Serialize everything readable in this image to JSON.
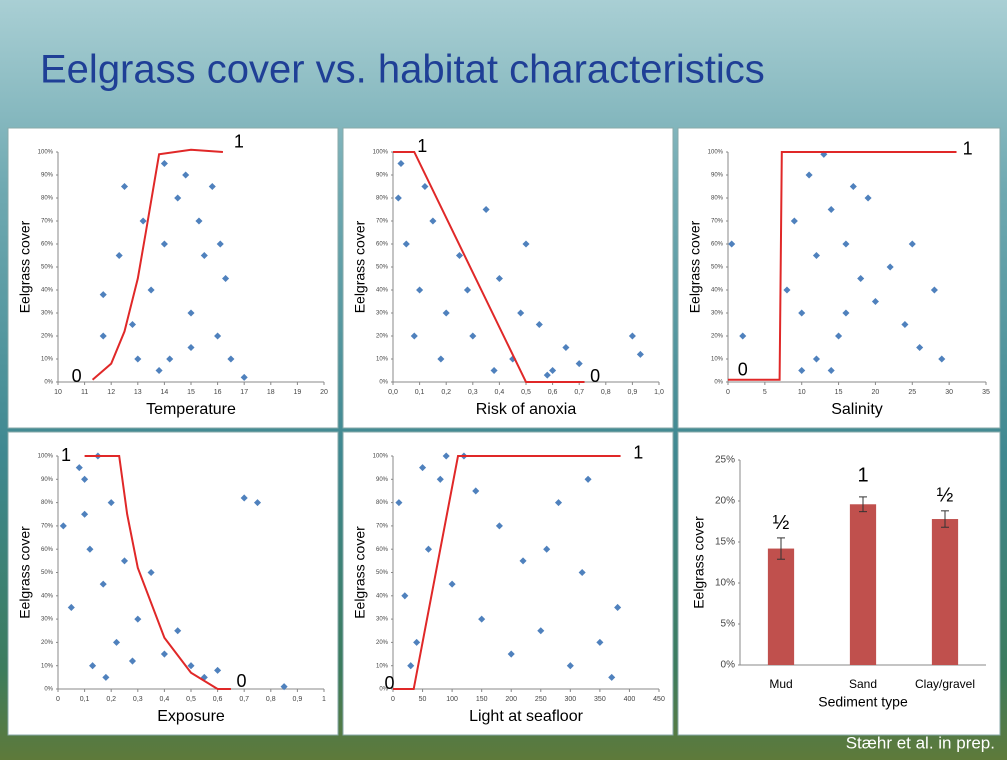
{
  "title": "Eelgrass cover vs. habitat characteristics",
  "footer": "Stæhr et al. in prep.",
  "chart_data": [
    {
      "type": "scatter",
      "xlabel": "Temperature",
      "ylabel": "Eelgrass cover",
      "xlim": [
        10,
        20
      ],
      "ylim": [
        0,
        100
      ],
      "xticks": [
        10,
        11,
        12,
        13,
        14,
        15,
        16,
        17,
        18,
        19,
        20
      ],
      "yticks": [
        {
          "value": 0,
          "label": "0%"
        },
        {
          "value": 10,
          "label": "10%"
        },
        {
          "value": 20,
          "label": "20%"
        },
        {
          "value": 30,
          "label": "30%"
        },
        {
          "value": 40,
          "label": "40%"
        },
        {
          "value": 50,
          "label": "50%"
        },
        {
          "value": 60,
          "label": "60%"
        },
        {
          "value": 70,
          "label": "70%"
        },
        {
          "value": 80,
          "label": "80%"
        },
        {
          "value": 90,
          "label": "90%"
        },
        {
          "value": 100,
          "label": "100%"
        }
      ],
      "points": {
        "color": "#4f81bd",
        "x": [
          13.5,
          14,
          14.5,
          15,
          15.5,
          16,
          14.2,
          13.8,
          14.8,
          15.3,
          16.3,
          12.8,
          12.3,
          11.7,
          11.7,
          12.5,
          13.2,
          15.8,
          16.5,
          17,
          14,
          15,
          13,
          16.1
        ],
        "values": [
          40,
          60,
          80,
          30,
          55,
          20,
          10,
          5,
          90,
          70,
          45,
          25,
          55,
          38,
          20,
          85,
          70,
          85,
          10,
          2,
          95,
          15,
          10,
          60
        ]
      },
      "fit": {
        "color": "#e02828",
        "x": [
          11.3,
          12,
          12.5,
          13,
          13.3,
          13.8,
          15,
          16.2
        ],
        "values": [
          1,
          8,
          22,
          45,
          65,
          99,
          101,
          100
        ]
      },
      "annotations": [
        {
          "text": "0",
          "x": 10.7,
          "y": 2
        },
        {
          "text": "1",
          "x": 16.8,
          "y": 104
        }
      ]
    },
    {
      "type": "scatter",
      "xlabel": "Risk of anoxia",
      "ylabel": "Eelgrass cover",
      "xlim": [
        0,
        1
      ],
      "ylim": [
        0,
        100
      ],
      "xticks": [
        {
          "value": 0,
          "label": "0,0"
        },
        {
          "value": 0.1,
          "label": "0,1"
        },
        {
          "value": 0.2,
          "label": "0,2"
        },
        {
          "value": 0.3,
          "label": "0,3"
        },
        {
          "value": 0.4,
          "label": "0,4"
        },
        {
          "value": 0.5,
          "label": "0,5"
        },
        {
          "value": 0.6,
          "label": "0,6"
        },
        {
          "value": 0.7,
          "label": "0,7"
        },
        {
          "value": 0.8,
          "label": "0,8"
        },
        {
          "value": 0.9,
          "label": "0,9"
        },
        {
          "value": 1,
          "label": "1,0"
        }
      ],
      "yticks": [
        {
          "value": 0,
          "label": "0%"
        },
        {
          "value": 10,
          "label": "10%"
        },
        {
          "value": 20,
          "label": "20%"
        },
        {
          "value": 30,
          "label": "30%"
        },
        {
          "value": 40,
          "label": "40%"
        },
        {
          "value": 50,
          "label": "50%"
        },
        {
          "value": 60,
          "label": "60%"
        },
        {
          "value": 70,
          "label": "70%"
        },
        {
          "value": 80,
          "label": "80%"
        },
        {
          "value": 90,
          "label": "90%"
        },
        {
          "value": 100,
          "label": "100%"
        }
      ],
      "points": {
        "color": "#4f81bd",
        "x": [
          0.02,
          0.05,
          0.1,
          0.15,
          0.2,
          0.25,
          0.3,
          0.35,
          0.4,
          0.45,
          0.5,
          0.55,
          0.6,
          0.65,
          0.7,
          0.03,
          0.08,
          0.12,
          0.18,
          0.28,
          0.38,
          0.48,
          0.58,
          0.9,
          0.93
        ],
        "values": [
          80,
          60,
          40,
          70,
          30,
          55,
          20,
          75,
          45,
          10,
          60,
          25,
          5,
          15,
          8,
          95,
          20,
          85,
          10,
          40,
          5,
          30,
          3,
          20,
          12
        ]
      },
      "fit": {
        "color": "#e02828",
        "x": [
          0,
          0.08,
          0.5,
          0.72
        ],
        "values": [
          100,
          100,
          0,
          0
        ]
      },
      "annotations": [
        {
          "text": "1",
          "x": 0.11,
          "y": 102
        },
        {
          "text": "0",
          "x": 0.76,
          "y": 2
        }
      ]
    },
    {
      "type": "scatter",
      "xlabel": "Salinity",
      "ylabel": "Eelgrass cover",
      "xlim": [
        0,
        35
      ],
      "ylim": [
        0,
        100
      ],
      "xticks": [
        0,
        5,
        10,
        15,
        20,
        25,
        30,
        35
      ],
      "yticks": [
        {
          "value": 0,
          "label": "0%"
        },
        {
          "value": 10,
          "label": "10%"
        },
        {
          "value": 20,
          "label": "20%"
        },
        {
          "value": 30,
          "label": "30%"
        },
        {
          "value": 40,
          "label": "40%"
        },
        {
          "value": 50,
          "label": "50%"
        },
        {
          "value": 60,
          "label": "60%"
        },
        {
          "value": 70,
          "label": "70%"
        },
        {
          "value": 80,
          "label": "80%"
        },
        {
          "value": 90,
          "label": "90%"
        },
        {
          "value": 100,
          "label": "100%"
        }
      ],
      "points": {
        "color": "#4f81bd",
        "x": [
          0.5,
          2,
          8,
          9,
          10,
          11,
          12,
          13,
          14,
          15,
          16,
          17,
          18,
          20,
          22,
          24,
          26,
          28,
          29,
          12,
          14,
          16,
          19,
          10,
          25
        ],
        "values": [
          60,
          20,
          40,
          70,
          30,
          90,
          55,
          99,
          75,
          20,
          60,
          85,
          45,
          35,
          50,
          25,
          15,
          40,
          10,
          10,
          5,
          30,
          80,
          5,
          60
        ]
      },
      "fit": {
        "color": "#e02828",
        "x": [
          0,
          7,
          7.3,
          31
        ],
        "values": [
          1,
          1,
          100,
          100
        ]
      },
      "annotations": [
        {
          "text": "0",
          "x": 2,
          "y": 5
        },
        {
          "text": "1",
          "x": 32.5,
          "y": 101
        }
      ]
    },
    {
      "type": "scatter",
      "xlabel": "Exposure",
      "ylabel": "Eelgrass cover",
      "xlim": [
        0,
        1
      ],
      "ylim": [
        0,
        100
      ],
      "xticks": [
        {
          "value": 0,
          "label": "0"
        },
        {
          "value": 0.1,
          "label": "0,1"
        },
        {
          "value": 0.2,
          "label": "0,2"
        },
        {
          "value": 0.3,
          "label": "0,3"
        },
        {
          "value": 0.4,
          "label": "0,4"
        },
        {
          "value": 0.5,
          "label": "0,5"
        },
        {
          "value": 0.6,
          "label": "0,6"
        },
        {
          "value": 0.7,
          "label": "0,7"
        },
        {
          "value": 0.8,
          "label": "0,8"
        },
        {
          "value": 0.9,
          "label": "0,9"
        },
        {
          "value": 1,
          "label": "1"
        }
      ],
      "yticks": [
        {
          "value": 0,
          "label": "0%"
        },
        {
          "value": 10,
          "label": "10%"
        },
        {
          "value": 20,
          "label": "20%"
        },
        {
          "value": 30,
          "label": "30%"
        },
        {
          "value": 40,
          "label": "40%"
        },
        {
          "value": 50,
          "label": "50%"
        },
        {
          "value": 60,
          "label": "60%"
        },
        {
          "value": 70,
          "label": "70%"
        },
        {
          "value": 80,
          "label": "80%"
        },
        {
          "value": 90,
          "label": "90%"
        },
        {
          "value": 100,
          "label": "100%"
        }
      ],
      "points": {
        "color": "#4f81bd",
        "x": [
          0.02,
          0.05,
          0.1,
          0.12,
          0.15,
          0.17,
          0.2,
          0.22,
          0.25,
          0.3,
          0.35,
          0.4,
          0.45,
          0.5,
          0.55,
          0.6,
          0.7,
          0.75,
          0.85,
          0.13,
          0.18,
          0.28,
          0.08,
          0.1
        ],
        "values": [
          70,
          35,
          90,
          60,
          100,
          45,
          80,
          20,
          55,
          30,
          50,
          15,
          25,
          10,
          5,
          8,
          82,
          80,
          1,
          10,
          5,
          12,
          95,
          75
        ]
      },
      "fit": {
        "color": "#e02828",
        "x": [
          0.1,
          0.23,
          0.26,
          0.3,
          0.4,
          0.5,
          0.6,
          0.65
        ],
        "values": [
          100,
          100,
          75,
          52,
          22,
          7,
          0,
          0
        ]
      },
      "annotations": [
        {
          "text": "1",
          "x": 0.03,
          "y": 100
        },
        {
          "text": "0",
          "x": 0.69,
          "y": 3
        }
      ]
    },
    {
      "type": "scatter",
      "xlabel": "Light at seafloor",
      "ylabel": "Eelgrass cover",
      "xlim": [
        0,
        450
      ],
      "ylim": [
        0,
        100
      ],
      "xticks": [
        0,
        50,
        100,
        150,
        200,
        250,
        300,
        350,
        400,
        450
      ],
      "yticks": [
        {
          "value": 0,
          "label": "0%"
        },
        {
          "value": 10,
          "label": "10%"
        },
        {
          "value": 20,
          "label": "20%"
        },
        {
          "value": 30,
          "label": "30%"
        },
        {
          "value": 40,
          "label": "40%"
        },
        {
          "value": 50,
          "label": "50%"
        },
        {
          "value": 60,
          "label": "60%"
        },
        {
          "value": 70,
          "label": "70%"
        },
        {
          "value": 80,
          "label": "80%"
        },
        {
          "value": 90,
          "label": "90%"
        },
        {
          "value": 100,
          "label": "100%"
        }
      ],
      "points": {
        "color": "#4f81bd",
        "x": [
          10,
          20,
          40,
          60,
          80,
          100,
          120,
          150,
          180,
          200,
          220,
          250,
          280,
          300,
          320,
          350,
          380,
          50,
          90,
          140,
          260,
          330,
          370,
          30
        ],
        "values": [
          80,
          40,
          20,
          60,
          90,
          45,
          100,
          30,
          70,
          15,
          55,
          25,
          80,
          10,
          50,
          20,
          35,
          95,
          100,
          85,
          60,
          90,
          5,
          10
        ]
      },
      "fit": {
        "color": "#e02828",
        "x": [
          0,
          35,
          110,
          385
        ],
        "values": [
          0,
          0,
          100,
          100
        ]
      },
      "annotations": [
        {
          "text": "0",
          "x": -6,
          "y": 2
        },
        {
          "text": "1",
          "x": 415,
          "y": 101
        }
      ]
    },
    {
      "type": "bar",
      "xlabel": "Sediment type",
      "ylabel": "Eelgrass cover",
      "categories": [
        "Mud",
        "Sand",
        "Clay/gravel"
      ],
      "values": [
        14.2,
        19.6,
        17.8
      ],
      "errors": [
        1.3,
        0.9,
        1.0
      ],
      "color": "#c0504d",
      "ylim": [
        0,
        25
      ],
      "yticks": [
        {
          "value": 0,
          "label": "0%"
        },
        {
          "value": 5,
          "label": "5%"
        },
        {
          "value": 10,
          "label": "10%"
        },
        {
          "value": 15,
          "label": "15%"
        },
        {
          "value": 20,
          "label": "20%"
        },
        {
          "value": 25,
          "label": "25%"
        }
      ],
      "annotations": [
        {
          "text": "½",
          "x": 0,
          "y": 17.2
        },
        {
          "text": "1",
          "x": 1,
          "y": 23
        },
        {
          "text": "½",
          "x": 2,
          "y": 20.6
        }
      ]
    }
  ]
}
